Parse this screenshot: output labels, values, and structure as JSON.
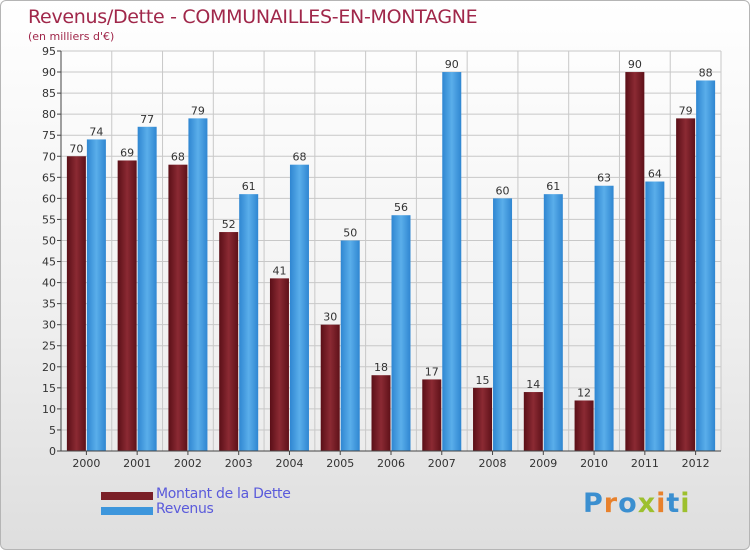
{
  "header": {
    "title": "Revenus/Dette - COMMUNAILLES-EN-MONTAGNE",
    "subtitle": "(en milliers d'€)"
  },
  "chart_data": {
    "type": "bar",
    "categories": [
      "2000",
      "2001",
      "2002",
      "2003",
      "2004",
      "2005",
      "2006",
      "2007",
      "2008",
      "2009",
      "2010",
      "2011",
      "2012"
    ],
    "series": [
      {
        "name": "Montant de la Dette",
        "color": "#7a1f27",
        "values": [
          70,
          69,
          68,
          52,
          41,
          30,
          18,
          17,
          15,
          14,
          12,
          90,
          79
        ]
      },
      {
        "name": "Revenus",
        "color": "#3d96dc",
        "values": [
          74,
          77,
          79,
          61,
          68,
          50,
          56,
          90,
          60,
          61,
          63,
          64,
          88
        ]
      }
    ],
    "ylim": [
      0,
      95
    ],
    "ytick_step": 5,
    "grid": true,
    "legend_position": "bottom-left"
  },
  "legend": {
    "items": [
      {
        "label": "Montant de la Dette",
        "color": "#7a1f27"
      },
      {
        "label": "Revenus",
        "color": "#3d96dc"
      }
    ]
  },
  "logo": {
    "letters": [
      "P",
      "r",
      "o",
      "x",
      "i",
      "t",
      "i"
    ],
    "colors": [
      "#3b8fd0",
      "#e8812c",
      "#3b8fd0",
      "#9dc02e",
      "#e8812c",
      "#3b8fd0",
      "#9dc02e"
    ]
  }
}
